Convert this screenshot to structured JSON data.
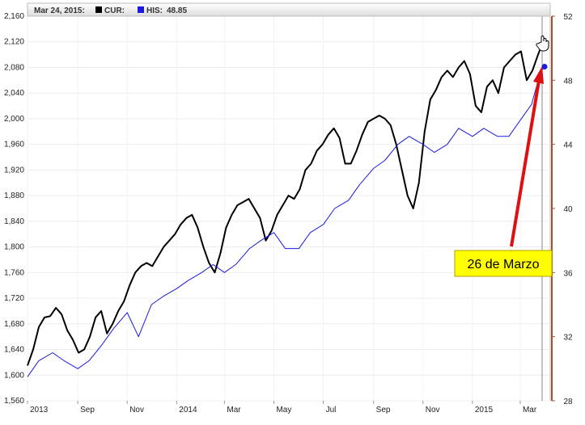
{
  "header": {
    "date_label": "Mar 24, 2015:",
    "cur_label": "CUR:",
    "his_label": "HIS:",
    "his_value": "48.85"
  },
  "annotation": {
    "text": "26 de Marzo"
  },
  "colors": {
    "cur_series": "#000000",
    "his_series": "#1a1adb",
    "annotation_arrow": "#dd1111",
    "annotation_box": "#ffff00",
    "right_axis": "#a0522d"
  },
  "chart_data": {
    "type": "line",
    "title": "",
    "xlabel": "",
    "ylabel": "",
    "x_ticks": [
      "2013",
      "Sep",
      "Nov",
      "2014",
      "Mar",
      "May",
      "Jul",
      "Sep",
      "Nov",
      "2015",
      "Mar"
    ],
    "y_left": {
      "range": [
        1560,
        2160
      ],
      "ticks": [
        "1,560",
        "1,600",
        "1,640",
        "1,680",
        "1,720",
        "1,760",
        "1,800",
        "1,840",
        "1,880",
        "1,920",
        "1,960",
        "2,000",
        "2,040",
        "2,080",
        "2,120",
        "2,160"
      ]
    },
    "y_right": {
      "range": [
        28,
        52
      ],
      "ticks": [
        "28",
        "32",
        "36",
        "40",
        "44",
        "48",
        "52"
      ]
    },
    "grid": true,
    "legend": "top-left",
    "x_domain": [
      "2013-07-01",
      "2015-04-07"
    ],
    "series": [
      {
        "name": "CUR",
        "axis": "left",
        "color": "#000000",
        "points": [
          [
            "2013-07-01",
            1615
          ],
          [
            "2013-07-08",
            1640
          ],
          [
            "2013-07-15",
            1675
          ],
          [
            "2013-07-22",
            1690
          ],
          [
            "2013-07-29",
            1692
          ],
          [
            "2013-08-05",
            1705
          ],
          [
            "2013-08-12",
            1695
          ],
          [
            "2013-08-19",
            1670
          ],
          [
            "2013-08-26",
            1655
          ],
          [
            "2013-09-02",
            1635
          ],
          [
            "2013-09-09",
            1640
          ],
          [
            "2013-09-16",
            1660
          ],
          [
            "2013-09-23",
            1690
          ],
          [
            "2013-09-30",
            1700
          ],
          [
            "2013-10-07",
            1665
          ],
          [
            "2013-10-14",
            1680
          ],
          [
            "2013-10-21",
            1700
          ],
          [
            "2013-10-28",
            1715
          ],
          [
            "2013-11-04",
            1740
          ],
          [
            "2013-11-11",
            1760
          ],
          [
            "2013-11-18",
            1770
          ],
          [
            "2013-11-25",
            1775
          ],
          [
            "2013-12-02",
            1770
          ],
          [
            "2013-12-09",
            1785
          ],
          [
            "2013-12-16",
            1800
          ],
          [
            "2013-12-23",
            1810
          ],
          [
            "2013-12-30",
            1820
          ],
          [
            "2014-01-06",
            1835
          ],
          [
            "2014-01-13",
            1845
          ],
          [
            "2014-01-20",
            1850
          ],
          [
            "2014-01-27",
            1830
          ],
          [
            "2014-02-03",
            1800
          ],
          [
            "2014-02-10",
            1775
          ],
          [
            "2014-02-17",
            1760
          ],
          [
            "2014-02-24",
            1790
          ],
          [
            "2014-03-03",
            1830
          ],
          [
            "2014-03-10",
            1850
          ],
          [
            "2014-03-17",
            1865
          ],
          [
            "2014-03-24",
            1870
          ],
          [
            "2014-03-31",
            1875
          ],
          [
            "2014-04-07",
            1860
          ],
          [
            "2014-04-14",
            1845
          ],
          [
            "2014-04-21",
            1810
          ],
          [
            "2014-04-28",
            1825
          ],
          [
            "2014-05-05",
            1850
          ],
          [
            "2014-05-12",
            1865
          ],
          [
            "2014-05-19",
            1880
          ],
          [
            "2014-05-26",
            1875
          ],
          [
            "2014-06-02",
            1890
          ],
          [
            "2014-06-09",
            1920
          ],
          [
            "2014-06-16",
            1930
          ],
          [
            "2014-06-23",
            1950
          ],
          [
            "2014-06-30",
            1960
          ],
          [
            "2014-07-07",
            1975
          ],
          [
            "2014-07-14",
            1985
          ],
          [
            "2014-07-21",
            1970
          ],
          [
            "2014-07-28",
            1930
          ],
          [
            "2014-08-04",
            1930
          ],
          [
            "2014-08-11",
            1950
          ],
          [
            "2014-08-18",
            1975
          ],
          [
            "2014-08-25",
            1995
          ],
          [
            "2014-09-01",
            2000
          ],
          [
            "2014-09-08",
            2005
          ],
          [
            "2014-09-15",
            2000
          ],
          [
            "2014-09-22",
            1990
          ],
          [
            "2014-09-29",
            1960
          ],
          [
            "2014-10-06",
            1920
          ],
          [
            "2014-10-13",
            1880
          ],
          [
            "2014-10-20",
            1860
          ],
          [
            "2014-10-27",
            1900
          ],
          [
            "2014-11-03",
            1980
          ],
          [
            "2014-11-10",
            2030
          ],
          [
            "2014-11-17",
            2045
          ],
          [
            "2014-11-24",
            2065
          ],
          [
            "2014-12-01",
            2075
          ],
          [
            "2014-12-08",
            2065
          ],
          [
            "2014-12-15",
            2080
          ],
          [
            "2014-12-22",
            2090
          ],
          [
            "2014-12-29",
            2070
          ],
          [
            "2015-01-05",
            2020
          ],
          [
            "2015-01-12",
            2010
          ],
          [
            "2015-01-19",
            2050
          ],
          [
            "2015-01-26",
            2060
          ],
          [
            "2015-02-02",
            2040
          ],
          [
            "2015-02-09",
            2080
          ],
          [
            "2015-02-16",
            2090
          ],
          [
            "2015-02-23",
            2100
          ],
          [
            "2015-03-02",
            2105
          ],
          [
            "2015-03-09",
            2060
          ],
          [
            "2015-03-16",
            2075
          ],
          [
            "2015-03-23",
            2100
          ],
          [
            "2015-03-26",
            2110
          ],
          [
            "2015-03-30",
            2110
          ]
        ]
      },
      {
        "name": "HIS",
        "axis": "right",
        "color": "#1a1adb",
        "points": [
          [
            "2013-07-01",
            29.5
          ],
          [
            "2013-07-15",
            30.5
          ],
          [
            "2013-08-01",
            31
          ],
          [
            "2013-08-15",
            30.5
          ],
          [
            "2013-09-01",
            30
          ],
          [
            "2013-09-15",
            30.5
          ],
          [
            "2013-10-01",
            31.5
          ],
          [
            "2013-10-15",
            32.5
          ],
          [
            "2013-11-01",
            33.5
          ],
          [
            "2013-11-15",
            32
          ],
          [
            "2013-12-01",
            34
          ],
          [
            "2013-12-15",
            34.5
          ],
          [
            "2014-01-01",
            35
          ],
          [
            "2014-01-15",
            35.5
          ],
          [
            "2014-02-01",
            36
          ],
          [
            "2014-02-15",
            36.5
          ],
          [
            "2014-03-01",
            36
          ],
          [
            "2014-03-15",
            36.5
          ],
          [
            "2014-04-01",
            37.5
          ],
          [
            "2014-04-15",
            38
          ],
          [
            "2014-05-01",
            38.5
          ],
          [
            "2014-05-15",
            37.5
          ],
          [
            "2014-06-01",
            37.5
          ],
          [
            "2014-06-15",
            38.5
          ],
          [
            "2014-07-01",
            39
          ],
          [
            "2014-07-15",
            40
          ],
          [
            "2014-08-01",
            40.5
          ],
          [
            "2014-08-15",
            41.5
          ],
          [
            "2014-09-01",
            42.5
          ],
          [
            "2014-09-15",
            43
          ],
          [
            "2014-10-01",
            44
          ],
          [
            "2014-10-15",
            44.5
          ],
          [
            "2014-11-01",
            44
          ],
          [
            "2014-11-15",
            43.5
          ],
          [
            "2014-12-01",
            44
          ],
          [
            "2014-12-15",
            45
          ],
          [
            "2015-01-01",
            44.5
          ],
          [
            "2015-01-15",
            45
          ],
          [
            "2015-02-01",
            44.5
          ],
          [
            "2015-02-15",
            44.5
          ],
          [
            "2015-03-01",
            45.5
          ],
          [
            "2015-03-15",
            46.5
          ],
          [
            "2015-03-26",
            48.5
          ],
          [
            "2015-03-31",
            48.85
          ]
        ]
      }
    ]
  }
}
